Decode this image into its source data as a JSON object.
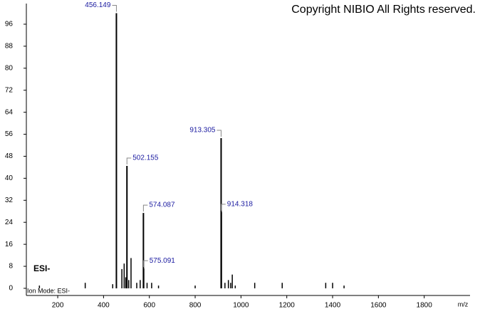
{
  "chart_data": {
    "type": "spectrum",
    "title": "Copyright NIBIO All Rights reserved.",
    "x_label": "m/z",
    "mode_label": "ESI-",
    "footer_label": "Ion Mode: ESI-",
    "color": "#000000",
    "label_color": "#1a1aa0",
    "peaks": {
      "x": [
        456.149,
        502.155,
        574.087,
        575.091,
        913.305,
        914.318
      ],
      "values": [
        100,
        44.5,
        27.4,
        7.2,
        54.6,
        27.7
      ]
    },
    "minor_peaks": {
      "x": [
        120,
        320,
        440,
        480,
        490,
        497,
        510,
        520,
        545,
        560,
        590,
        610,
        640,
        800,
        930,
        945,
        955,
        962,
        975,
        1060,
        1180,
        1370,
        1400,
        1450
      ],
      "values": [
        1,
        2,
        1.5,
        7,
        9,
        4,
        3,
        11,
        2,
        3,
        2,
        2,
        1,
        1,
        2,
        3,
        2,
        5,
        1,
        2,
        2,
        2,
        2,
        1
      ]
    },
    "xlim": [
      63,
      2000
    ],
    "ylim": [
      -2.6,
      103.5
    ],
    "xticks": [
      200,
      400,
      600,
      800,
      1000,
      1200,
      1400,
      1600,
      1800
    ],
    "yticks": [
      0,
      8,
      16,
      24,
      32,
      40,
      48,
      56,
      64,
      72,
      80,
      88,
      96
    ]
  }
}
